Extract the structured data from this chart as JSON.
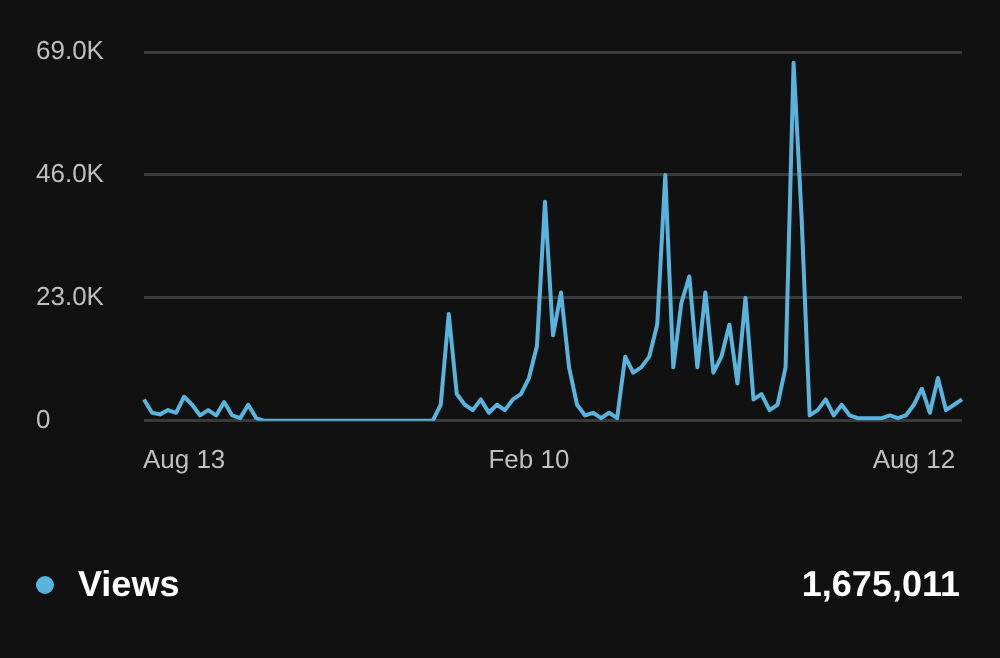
{
  "chart_data": {
    "type": "line",
    "categories": [
      null,
      null,
      null,
      null,
      null,
      "Aug 13",
      null,
      null,
      null,
      null,
      null,
      null,
      null,
      null,
      null,
      null,
      null,
      null,
      null,
      null,
      null,
      null,
      null,
      null,
      null,
      null,
      null,
      null,
      null,
      null,
      null,
      null,
      null,
      null,
      null,
      null,
      null,
      null,
      null,
      null,
      null,
      null,
      null,
      null,
      null,
      null,
      null,
      null,
      "Feb 10",
      null,
      null,
      null,
      null,
      null,
      null,
      null,
      null,
      null,
      null,
      null,
      null,
      null,
      null,
      null,
      null,
      null,
      null,
      null,
      null,
      null,
      null,
      null,
      null,
      null,
      null,
      null,
      null,
      null,
      null,
      null,
      null,
      null,
      null,
      null,
      null,
      null,
      null,
      null,
      null,
      null,
      null,
      null,
      null,
      null,
      null,
      null,
      "Aug 12",
      null,
      null,
      null,
      null,
      null,
      null
    ],
    "series": [
      {
        "name": "Views",
        "color": "#58b4dc",
        "values": [
          4000,
          1500,
          1200,
          2000,
          1500,
          4500,
          3000,
          1000,
          2000,
          1000,
          3500,
          1000,
          500,
          3000,
          500,
          0,
          0,
          0,
          0,
          0,
          0,
          0,
          0,
          0,
          0,
          0,
          0,
          0,
          0,
          0,
          0,
          0,
          0,
          0,
          0,
          0,
          0,
          3000,
          20000,
          5000,
          3000,
          2000,
          4000,
          1500,
          3000,
          2000,
          4000,
          5000,
          8000,
          14000,
          41000,
          16000,
          24000,
          10000,
          3000,
          1000,
          1500,
          500,
          1500,
          500,
          12000,
          9000,
          10000,
          12000,
          18000,
          46000,
          10000,
          22000,
          27000,
          10000,
          24000,
          9000,
          12000,
          18000,
          7000,
          23000,
          4000,
          5000,
          2000,
          3000,
          10000,
          67000,
          38000,
          1000,
          2000,
          4000,
          1000,
          3000,
          1000,
          500,
          500,
          500,
          500,
          1000,
          500,
          1000,
          3000,
          6000,
          1500,
          8000,
          2000,
          3000,
          4000
        ]
      }
    ],
    "ylim": [
      0,
      69000
    ],
    "yticks": [
      0,
      {
        "value": 23000,
        "label": "23.0K"
      },
      {
        "value": 46000,
        "label": "46.0K"
      },
      {
        "value": 69000,
        "label": "69.0K"
      }
    ],
    "grid": "y",
    "legend": "bottom",
    "marker": "none",
    "line_style": "solid",
    "annotations": [
      "1,675,011"
    ]
  }
}
